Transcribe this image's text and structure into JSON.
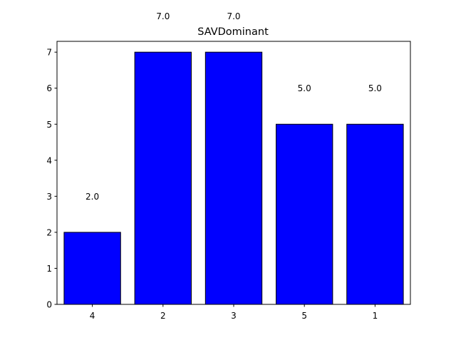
{
  "chart_data": {
    "type": "bar",
    "title": "SAVDominant",
    "xlabel": "",
    "ylabel": "",
    "categories": [
      "4",
      "2",
      "3",
      "5",
      "1"
    ],
    "values": [
      2,
      7,
      7,
      5,
      5
    ],
    "data_labels": [
      "2.0",
      "7.0",
      "7.0",
      "5.0",
      "5.0"
    ],
    "ylim": [
      0,
      7.3
    ],
    "yticks": [
      0,
      1,
      2,
      3,
      4,
      5,
      6,
      7
    ],
    "grid": false,
    "bar_color": "#0000ff",
    "edge_color": "#000000"
  }
}
